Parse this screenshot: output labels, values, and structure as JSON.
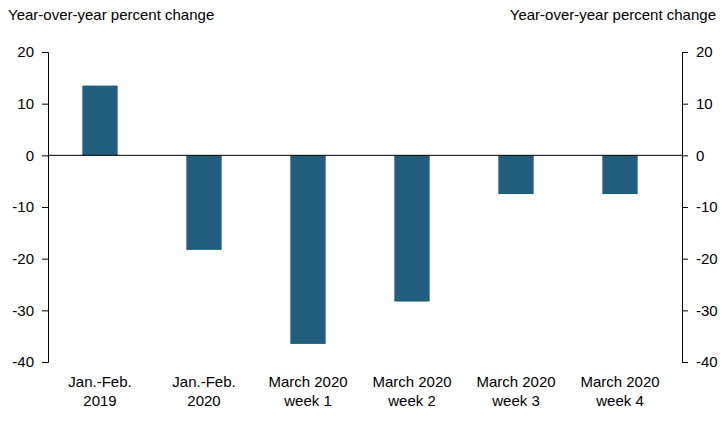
{
  "chart_data": {
    "type": "bar",
    "y_label": "Year-over-year percent change",
    "y2_label": "Year-over-year percent change",
    "categories": [
      "Jan.-Feb.\n2019",
      "Jan.-Feb.\n2020",
      "March 2020\nweek 1",
      "March 2020\nweek 2",
      "March 2020\nweek 3",
      "March 2020\nweek 4"
    ],
    "values": [
      13.5,
      -18.3,
      -36.5,
      -28.3,
      -7.5,
      -7.5
    ],
    "color": "#215e7c",
    "ylim": [
      -40,
      20
    ],
    "yticks": [
      -40,
      -30,
      -20,
      -10,
      0,
      10,
      20
    ],
    "y2lim": [
      -40,
      20
    ],
    "y2ticks": [
      -40,
      -30,
      -20,
      -10,
      0,
      10,
      20
    ],
    "grid": false
  }
}
